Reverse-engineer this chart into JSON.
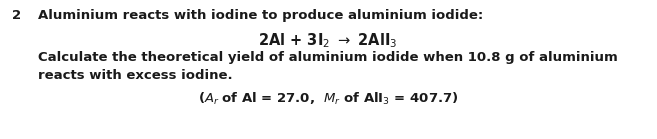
{
  "figsize": [
    6.57,
    1.39
  ],
  "dpi": 100,
  "bg_color": "#ffffff",
  "question_number": "2",
  "line1": "Aluminium reacts with iodine to produce aluminium iodide:",
  "equation": "2Al + 3I$_2$ $\\rightarrow$ 2AlI$_3$",
  "line3a": "Calculate the theoretical yield of aluminium iodide when 10.8 g of aluminium",
  "line3b": "reacts with excess iodine.",
  "line4": "($A_r$ of Al = 27.0,  $M_r$ of AlI$_3$ = 407.7)",
  "font_size_main": 9.5,
  "font_size_eq": 10.5,
  "text_color": "#1a1a1a"
}
